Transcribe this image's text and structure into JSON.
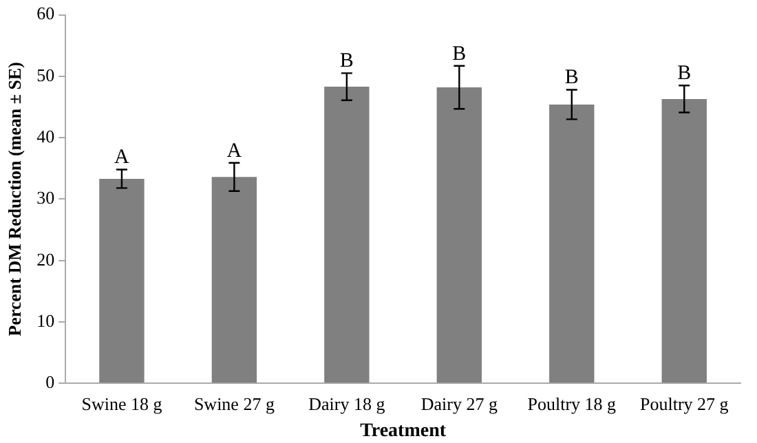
{
  "chart_data": {
    "type": "bar",
    "xlabel": "Treatment",
    "ylabel": "Percent DM Reduction (mean ± SE)",
    "categories": [
      "Swine 18 g",
      "Swine 27 g",
      "Dairy 18 g",
      "Dairy 27 g",
      "Poultry 18 g",
      "Poultry 27 g"
    ],
    "values": [
      33.3,
      33.6,
      48.3,
      48.2,
      45.4,
      46.3
    ],
    "errors": [
      1.5,
      2.3,
      2.2,
      3.5,
      2.4,
      2.2
    ],
    "color": "#808080",
    "ylim": [
      0,
      60
    ],
    "yticks": [
      0,
      10,
      20,
      30,
      40,
      50,
      60
    ],
    "grid": false,
    "legend": false,
    "annotations": [
      {
        "text": "A",
        "x": "Swine 18 g",
        "y": 34.8
      },
      {
        "text": "A",
        "x": "Swine 27 g",
        "y": 35.9
      },
      {
        "text": "B",
        "x": "Dairy 18 g",
        "y": 50.5
      },
      {
        "text": "B",
        "x": "Dairy 27 g",
        "y": 51.7
      },
      {
        "text": "B",
        "x": "Poultry 18 g",
        "y": 47.8
      },
      {
        "text": "B",
        "x": "Poultry 27 g",
        "y": 48.5
      }
    ]
  }
}
